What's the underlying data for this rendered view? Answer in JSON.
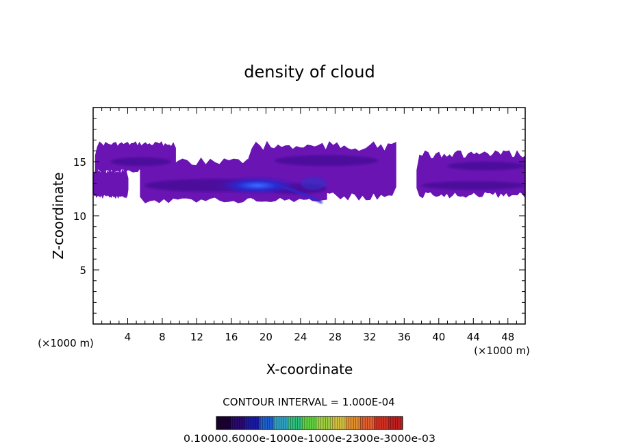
{
  "chart_data": {
    "type": "heatmap",
    "title": "density of cloud",
    "xlabel": "X-coordinate",
    "ylabel": "Z-coordinate",
    "x_unit_label": "(×1000 m)",
    "y_unit_label": "(×1000 m)",
    "xlim": [
      0,
      50
    ],
    "ylim": [
      0,
      20
    ],
    "x_ticks": [
      4,
      8,
      12,
      16,
      20,
      24,
      28,
      32,
      36,
      40,
      44,
      48
    ],
    "y_ticks": [
      5,
      10,
      15
    ],
    "grid": false,
    "contour_interval_label": "CONTOUR INTERVAL = 1.000E-04",
    "colorbar_labels_text": "0.10000.6000e-1000e-1000e-2300e-3000e-03",
    "colorbar_colors": [
      "#1a0033",
      "#2a0a6e",
      "#1a1aa0",
      "#1f5fd0",
      "#2fa0c0",
      "#30c080",
      "#60d040",
      "#a0d040",
      "#d0c040",
      "#e09030",
      "#e06030",
      "#d03020",
      "#c02020"
    ],
    "cloud_regions": [
      {
        "x_range": [
          0.3,
          9.5
        ],
        "z_range": [
          14.0,
          16.8
        ],
        "peak": 0.00015
      },
      {
        "x_range": [
          0.0,
          4.0
        ],
        "z_range": [
          11.7,
          14.2
        ],
        "peak": 0.00012
      },
      {
        "x_range": [
          5.5,
          27.0
        ],
        "z_range": [
          11.2,
          15.3
        ],
        "peak": 0.0007
      },
      {
        "x_range": [
          18.0,
          35.0
        ],
        "z_range": [
          11.5,
          16.8
        ],
        "peak": 0.0003
      },
      {
        "x_range": [
          37.5,
          50.0
        ],
        "z_range": [
          11.7,
          16.0
        ],
        "peak": 0.0002
      }
    ]
  }
}
